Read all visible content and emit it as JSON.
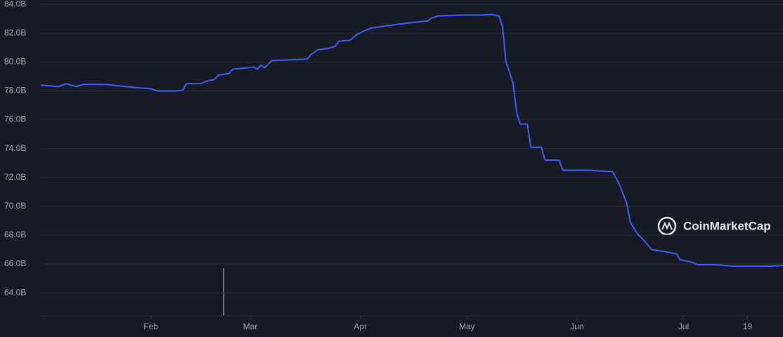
{
  "chart_data": {
    "type": "line",
    "watermark": "CoinMarketCap",
    "xlim": [
      0,
      209
    ],
    "xticks": [
      {
        "value": 31,
        "label": "Feb"
      },
      {
        "value": 59,
        "label": "Mar"
      },
      {
        "value": 90,
        "label": "Apr"
      },
      {
        "value": 120,
        "label": "May"
      },
      {
        "value": 151,
        "label": "Jun"
      },
      {
        "value": 181,
        "label": "Jul"
      },
      {
        "value": 199,
        "label": "19"
      }
    ],
    "ylim": [
      62.4,
      84.3
    ],
    "yticks": [
      {
        "value": 64,
        "label": "64.0B"
      },
      {
        "value": 66,
        "label": "66.0B"
      },
      {
        "value": 68,
        "label": "68.0B"
      },
      {
        "value": 70,
        "label": "70.0B"
      },
      {
        "value": 72,
        "label": "72.0B"
      },
      {
        "value": 74,
        "label": "74.0B"
      },
      {
        "value": 76,
        "label": "76.0B"
      },
      {
        "value": 78,
        "label": "78.0B"
      },
      {
        "value": 80,
        "label": "80.0B"
      },
      {
        "value": 82,
        "label": "82.0B"
      },
      {
        "value": 84,
        "label": "84.0B"
      }
    ],
    "grid": true,
    "color": "#3861fb",
    "x": [
      0,
      5,
      7,
      10,
      12,
      18,
      22,
      28,
      31,
      33,
      38,
      40,
      41,
      45,
      47,
      49,
      50,
      53,
      54,
      58,
      60,
      61,
      62,
      63,
      65,
      70,
      75,
      76,
      78,
      81,
      83,
      84,
      87,
      89,
      91,
      93,
      97,
      100,
      105,
      109,
      110,
      112,
      118,
      124,
      127,
      129,
      130,
      131,
      132,
      133,
      134,
      135,
      137,
      138,
      141,
      142,
      146,
      147,
      155,
      157,
      161,
      163,
      165,
      166,
      168,
      170,
      172,
      176,
      179,
      180,
      183,
      185,
      190,
      195,
      200,
      205,
      209
    ],
    "values": [
      78.4,
      78.3,
      78.5,
      78.3,
      78.45,
      78.45,
      78.35,
      78.2,
      78.15,
      78.0,
      78.0,
      78.05,
      78.5,
      78.5,
      78.7,
      78.8,
      79.1,
      79.2,
      79.5,
      79.6,
      79.65,
      79.5,
      79.8,
      79.6,
      80.1,
      80.15,
      80.2,
      80.5,
      80.85,
      80.95,
      81.1,
      81.45,
      81.5,
      81.9,
      82.15,
      82.35,
      82.5,
      82.6,
      82.75,
      82.85,
      83.05,
      83.2,
      83.25,
      83.25,
      83.3,
      83.2,
      82.5,
      80.0,
      79.3,
      78.5,
      76.5,
      75.7,
      75.7,
      74.1,
      74.1,
      73.2,
      73.2,
      72.5,
      72.5,
      72.45,
      72.4,
      71.5,
      70.2,
      68.9,
      68.1,
      67.6,
      67.0,
      66.85,
      66.7,
      66.3,
      66.15,
      65.95,
      65.95,
      65.85,
      65.85,
      65.85,
      65.9
    ]
  }
}
